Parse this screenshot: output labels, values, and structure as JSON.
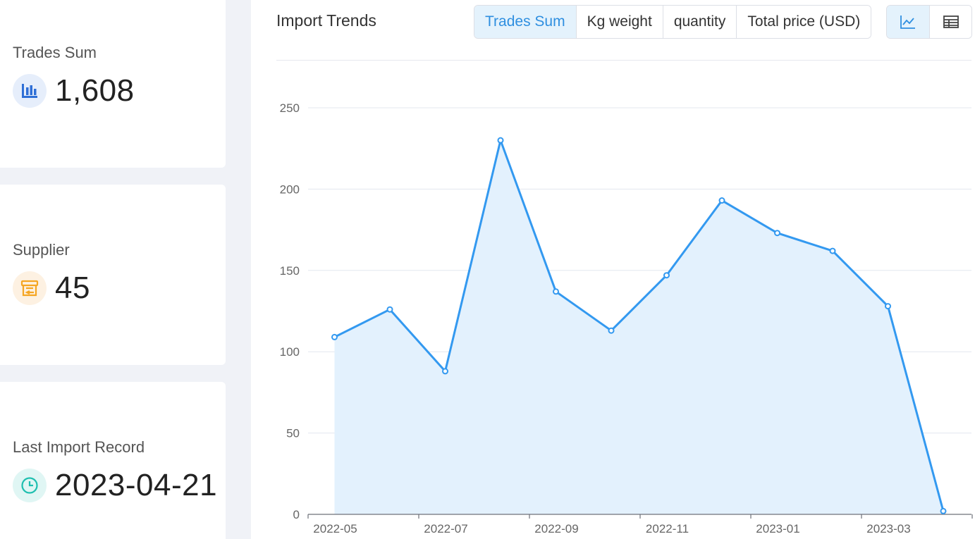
{
  "stats": {
    "trades": {
      "label": "Trades Sum",
      "value": "1,608",
      "icon": "bar-chart-icon"
    },
    "supplier": {
      "label": "Supplier",
      "value": "45",
      "icon": "store-icon"
    },
    "last_record": {
      "label": "Last Import Record",
      "value": "2023-04-21",
      "icon": "clock-icon"
    }
  },
  "panel": {
    "title": "Import Trends",
    "tabs": [
      "Trades Sum",
      "Kg weight",
      "quantity",
      "Total price (USD)"
    ],
    "active_tab": "Trades Sum",
    "view_modes": [
      "line-chart-icon",
      "table-icon"
    ],
    "active_view": "line-chart-icon"
  },
  "colors": {
    "accent": "#2f8fe0",
    "line": "#3399f0",
    "area": "#e3f1fd",
    "icon_blue": "#2f6fd6",
    "icon_orange": "#f5a623",
    "icon_teal": "#1fbfb0"
  },
  "chart_data": {
    "type": "area",
    "x": [
      "2022-05",
      "2022-06",
      "2022-07",
      "2022-08",
      "2022-09",
      "2022-10",
      "2022-11",
      "2022-12",
      "2023-01",
      "2023-02",
      "2023-03",
      "2023-04"
    ],
    "series": [
      {
        "values": [
          109,
          126,
          88,
          230,
          137,
          113,
          147,
          193,
          173,
          162,
          128,
          2
        ]
      }
    ],
    "x_tick_labels": [
      "2022-05",
      "2022-07",
      "2022-09",
      "2022-11",
      "2023-01",
      "2023-03"
    ],
    "y_ticks": [
      0,
      50,
      100,
      150,
      200,
      250
    ],
    "ylim": [
      0,
      250
    ],
    "grid": true,
    "title": "",
    "xlabel": "",
    "ylabel": ""
  }
}
